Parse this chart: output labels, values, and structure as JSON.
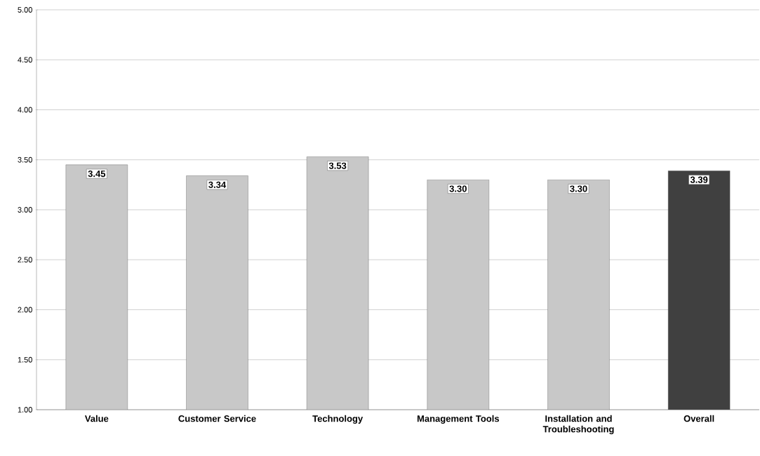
{
  "chart_data": {
    "type": "bar",
    "categories": [
      "Value",
      "Customer Service",
      "Technology",
      "Management Tools",
      "Installation and Troubleshooting",
      "Overall"
    ],
    "values": [
      3.45,
      3.34,
      3.53,
      3.3,
      3.3,
      3.39
    ],
    "value_labels": [
      "3.45",
      "3.34",
      "3.53",
      "3.30",
      "3.30",
      "3.39"
    ],
    "colors": [
      "#c8c8c8",
      "#c8c8c8",
      "#c8c8c8",
      "#c8c8c8",
      "#c8c8c8",
      "#404040"
    ],
    "ylim": [
      1,
      5
    ],
    "yticks": [
      {
        "value": 1,
        "label": "1.00"
      },
      {
        "value": 1.5,
        "label": "1.50"
      },
      {
        "value": 2,
        "label": "2.00"
      },
      {
        "value": 2.5,
        "label": "2.50"
      },
      {
        "value": 3,
        "label": "3.00"
      },
      {
        "value": 3.5,
        "label": "3.50"
      },
      {
        "value": 4,
        "label": "4.00"
      },
      {
        "value": 4.5,
        "label": "4.50"
      },
      {
        "value": 5,
        "label": "5.00"
      }
    ],
    "grid": "y"
  }
}
